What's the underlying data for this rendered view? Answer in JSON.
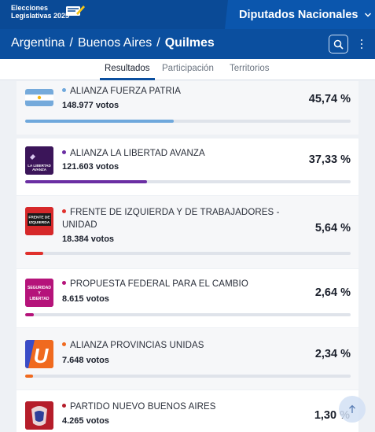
{
  "header": {
    "logo_line1": "Elecciones",
    "logo_line2": "Legislativas 2025",
    "chamber": "Diputados Nacionales"
  },
  "breadcrumb": {
    "country": "Argentina",
    "province": "Buenos Aires",
    "district": "Quilmes",
    "separator": "/"
  },
  "tabs": [
    "Resultados",
    "Participación",
    "Territorios"
  ],
  "parties": [
    {
      "name": "ALIANZA FUERZA PATRIA",
      "votes": "148.977 votos",
      "percent": "45,74 %",
      "share": 45.74,
      "color": "#6fa8dc",
      "logo": "flag-argentina"
    },
    {
      "name": "ALIANZA LA LIBERTAD AVANZA",
      "votes": "121.603 votos",
      "percent": "37,33 %",
      "share": 37.33,
      "color": "#6b2fa3",
      "logo": "libertad-avanza",
      "logo_text": "LA LIBERTAD AVANZA"
    },
    {
      "name": "FRENTE DE IZQUIERDA Y DE TRABAJADORES - UNIDAD",
      "votes": "18.384 votos",
      "percent": "5,64 %",
      "share": 5.64,
      "color": "#e0302c",
      "logo": "frente-izquierda",
      "logo_text": "FRENTE DE IZQUIERDA"
    },
    {
      "name": "PROPUESTA FEDERAL PARA EL CAMBIO",
      "votes": "8.615 votos",
      "percent": "2,64 %",
      "share": 2.64,
      "color": "#b5137a",
      "logo": "seguridad-libertad",
      "logo_text": "SEGURIDAD Y LIBERTAD"
    },
    {
      "name": "ALIANZA PROVINCIAS UNIDAS",
      "votes": "7.648 votos",
      "percent": "2,34 %",
      "share": 2.34,
      "color": "#f06a1f",
      "logo": "provincias-unidas",
      "logo_text": "U"
    },
    {
      "name": "PARTIDO NUEVO BUENOS AIRES",
      "votes": "4.265 votos",
      "percent": "1,30 %",
      "share": 1.3,
      "color": "#b51d2a",
      "logo": "nuevo-buenos-aires"
    }
  ]
}
